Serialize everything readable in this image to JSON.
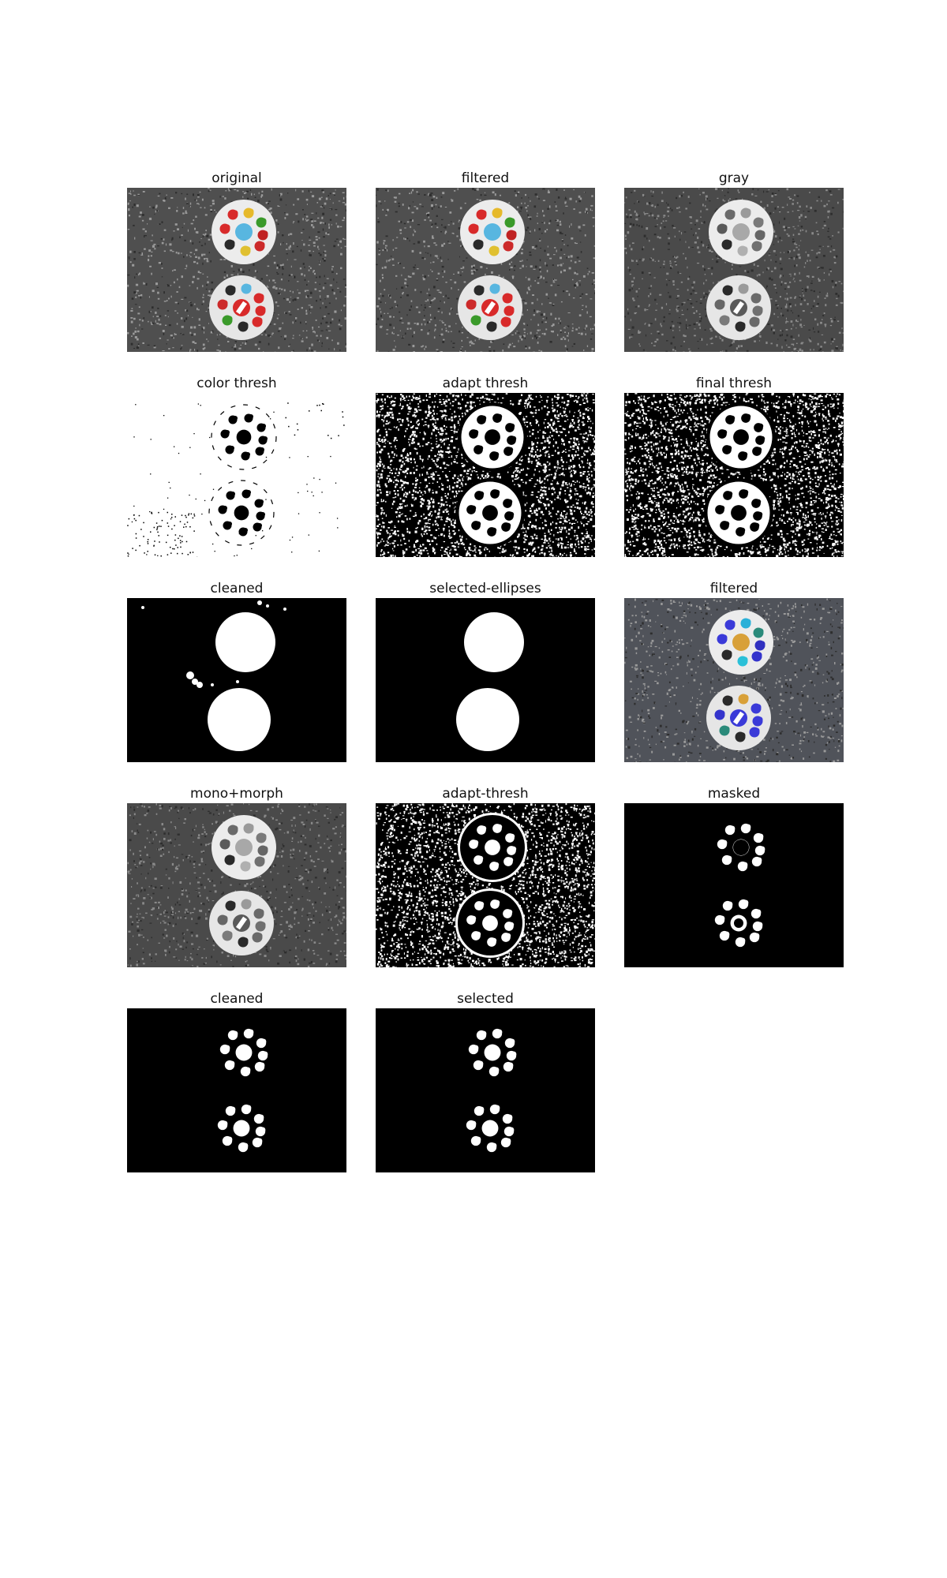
{
  "panels": [
    {
      "title": "original",
      "kind": "photo"
    },
    {
      "title": "filtered",
      "kind": "photo"
    },
    {
      "title": "gray",
      "kind": "gray"
    },
    {
      "title": "color thresh",
      "kind": "color-thresh"
    },
    {
      "title": "adapt thresh",
      "kind": "noise-a"
    },
    {
      "title": "final thresh",
      "kind": "noise-b"
    },
    {
      "title": "cleaned",
      "kind": "cleaned-ellipses"
    },
    {
      "title": "selected-ellipses",
      "kind": "selected-ellipses"
    },
    {
      "title": "filtered",
      "kind": "photo-bluish"
    },
    {
      "title": "mono+morph",
      "kind": "gray"
    },
    {
      "title": "adapt-thresh",
      "kind": "noise-c"
    },
    {
      "title": "masked",
      "kind": "masked"
    },
    {
      "title": "cleaned",
      "kind": "shapes"
    },
    {
      "title": "selected",
      "kind": "shapes"
    }
  ],
  "colors": {
    "background": "#ffffff",
    "table": "#4f4f4f",
    "disc": "#ececec"
  }
}
